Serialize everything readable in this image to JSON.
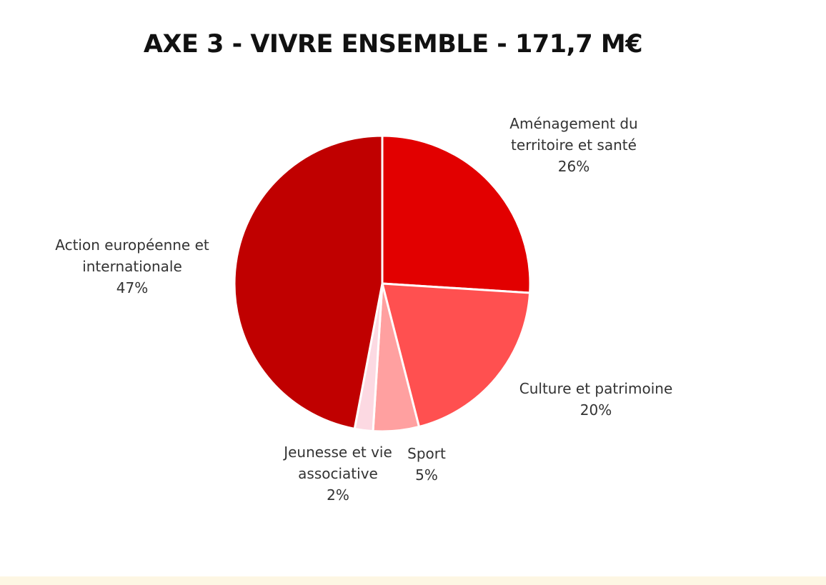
{
  "chart_data": {
    "type": "pie",
    "title": "AXE 3 - VIVRE ENSEMBLE - 171,7 M€",
    "slices": [
      {
        "label": "Aménagement du\nterritoire et santé",
        "pct_label": "26%",
        "value": 26,
        "color": "#e20000"
      },
      {
        "label": "Culture et patrimoine",
        "pct_label": "20%",
        "value": 20,
        "color": "#ff5050"
      },
      {
        "label": "Sport",
        "pct_label": "5%",
        "value": 5,
        "color": "#ffa0a0"
      },
      {
        "label": "Jeunesse et vie\nassociative",
        "pct_label": "2%",
        "value": 2,
        "color": "#fcd9e2"
      },
      {
        "label": "Action européenne et\ninternationale",
        "pct_label": "47%",
        "value": 47,
        "color": "#c00000"
      }
    ]
  }
}
